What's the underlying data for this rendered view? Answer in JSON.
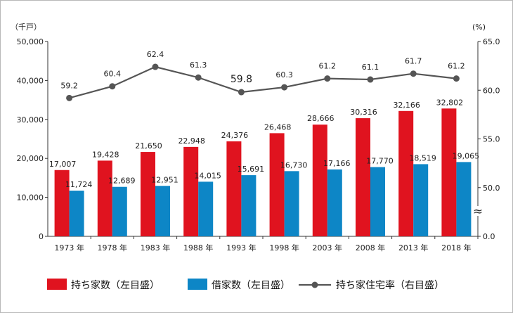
{
  "chart_data": {
    "type": "bar",
    "categories": [
      "1973 年",
      "1978 年",
      "1983 年",
      "1988 年",
      "1993 年",
      "1998 年",
      "2003 年",
      "2008 年",
      "2013 年",
      "2018 年"
    ],
    "left_unit": "（千戸）",
    "right_unit": "(%)",
    "left_ticks": [
      "0",
      "10,000",
      "20,000",
      "30,000",
      "40,000",
      "50,000"
    ],
    "right_ticks": [
      "0.0",
      "50.0",
      "55.0",
      "60.0",
      "65.0"
    ],
    "right_break_symbol": "≈",
    "left_ylim": [
      0,
      50000
    ],
    "right_ylim_note": "axis break between 0.0 and 50.0",
    "right_scale": [
      45,
      65
    ],
    "series": [
      {
        "name": "持ち家数（左目盛）",
        "axis": "left",
        "kind": "bar",
        "color": "#e0131f",
        "values": [
          17007,
          19428,
          21650,
          22948,
          24376,
          26468,
          28666,
          30316,
          32166,
          32802
        ],
        "labels": [
          "17,007",
          "19,428",
          "21,650",
          "22,948",
          "24,376",
          "26,468",
          "28,666",
          "30,316",
          "32,166",
          "32,802"
        ]
      },
      {
        "name": "借家数（左目盛）",
        "axis": "left",
        "kind": "bar",
        "color": "#0d86c6",
        "values": [
          11724,
          12689,
          12951,
          14015,
          15691,
          16730,
          17166,
          17770,
          18519,
          19065
        ],
        "labels": [
          "11,724",
          "12,689",
          "12,951",
          "14,015",
          "15,691",
          "16,730",
          "17,166",
          "17,770",
          "18,519",
          "19,065"
        ]
      },
      {
        "name": "持ち家住宅率（右目盛）",
        "axis": "right",
        "kind": "line",
        "color": "#555555",
        "values": [
          59.2,
          60.4,
          62.4,
          61.3,
          59.8,
          60.3,
          61.2,
          61.1,
          61.7,
          61.2
        ],
        "labels": [
          "59.2",
          "60.4",
          "62.4",
          "61.3",
          "59.8",
          "60.3",
          "61.2",
          "61.1",
          "61.7",
          "61.2"
        ]
      }
    ],
    "grid": false,
    "legend": "bottom"
  }
}
